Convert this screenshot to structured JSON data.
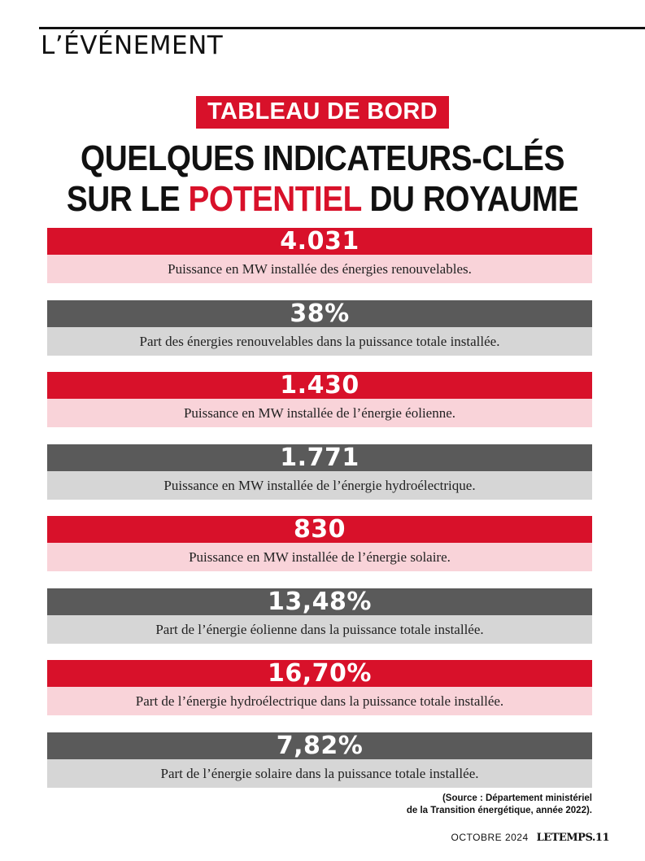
{
  "header": {
    "section": "L’ÉVÉNEMENT"
  },
  "kicker": "TABLEAU DE BORD",
  "headline": {
    "line1": "QUELQUES INDICATEURS-CLÉS",
    "line2_before": "SUR LE ",
    "line2_accent": "POTENTIEL",
    "line2_after": " DU ROYAUME"
  },
  "indicators": [
    {
      "value": "4.031",
      "label": "Puissance en MW installée des énergies renouvelables."
    },
    {
      "value": "38%",
      "label": "Part des énergies renouvelables dans la puissance totale installée."
    },
    {
      "value": "1.430",
      "label": "Puissance en MW installée de l’énergie éolienne."
    },
    {
      "value": "1.771",
      "label": "Puissance en MW installée de l’énergie hydroélectrique."
    },
    {
      "value": "830",
      "label": "Puissance en MW installée de l’énergie solaire."
    },
    {
      "value": "13,48%",
      "label": "Part de l’énergie éolienne dans la puissance totale installée."
    },
    {
      "value": "16,70%",
      "label": "Part de l’énergie hydroélectrique dans la puissance totale installée."
    },
    {
      "value": "7,82%",
      "label": "Part de l’énergie solaire dans la puissance totale installée."
    }
  ],
  "source": {
    "line1": "(Source : Département ministériel",
    "line2": "de la Transition énergétique, année 2022)."
  },
  "footer": {
    "issue": "OCTOBRE 2024",
    "logo": "LETEMPS.",
    "page": "11"
  },
  "colors": {
    "accent_red": "#d8112a",
    "light_red": "#f9d3d9",
    "dark_grey": "#5a5a5a",
    "light_grey": "#d6d6d6"
  }
}
